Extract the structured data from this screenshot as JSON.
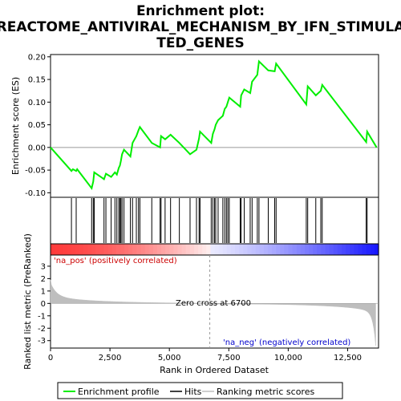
{
  "chart_data": {
    "type": "line",
    "title_line1": "Enrichment plot:",
    "title_line2": "REACTOME_ANTIVIRAL_MECHANISM_BY_IFN_STIMULA",
    "title_line3": "TED_GENES",
    "es_panel": {
      "ylabel": "Enrichment score (ES)",
      "ylim": [
        -0.11,
        0.205
      ],
      "yticks": [
        -0.1,
        -0.05,
        0.0,
        0.05,
        0.1,
        0.15,
        0.2
      ],
      "ytick_labels": [
        "-0.10",
        "-0.05",
        "0.00",
        "0.05",
        "0.10",
        "0.15",
        "0.20"
      ],
      "line_color": "#00ee00"
    },
    "xlim": [
      0,
      13800
    ],
    "xticks": [
      0,
      2500,
      5000,
      7500,
      10000,
      12500
    ],
    "xtick_labels": [
      "0",
      "2,500",
      "5,000",
      "7,500",
      "10,000",
      "12,500"
    ],
    "xlabel": "Rank in Ordered Dataset",
    "hits": [
      880,
      1080,
      1730,
      1800,
      1840,
      2250,
      2330,
      2550,
      2710,
      2790,
      2870,
      2920,
      2960,
      3010,
      3090,
      3360,
      3450,
      3610,
      3700,
      3760,
      4260,
      4610,
      4650,
      4820,
      5050,
      5420,
      5870,
      6140,
      6250,
      6290,
      6760,
      6830,
      6900,
      6950,
      7050,
      7250,
      7330,
      7400,
      7460,
      7520,
      7980,
      8020,
      8150,
      8400,
      8480,
      8700,
      8770,
      9160,
      9430,
      9490,
      10760,
      10820,
      11160,
      11370,
      11430,
      13280,
      13320
    ],
    "es_curve": [
      [
        0,
        0.0
      ],
      [
        880,
        -0.052
      ],
      [
        940,
        -0.048
      ],
      [
        1080,
        -0.052
      ],
      [
        1120,
        -0.048
      ],
      [
        1730,
        -0.09
      ],
      [
        1800,
        -0.075
      ],
      [
        1840,
        -0.055
      ],
      [
        2250,
        -0.07
      ],
      [
        2330,
        -0.058
      ],
      [
        2550,
        -0.065
      ],
      [
        2710,
        -0.055
      ],
      [
        2790,
        -0.06
      ],
      [
        2870,
        -0.045
      ],
      [
        2920,
        -0.04
      ],
      [
        2960,
        -0.03
      ],
      [
        3010,
        -0.015
      ],
      [
        3090,
        -0.005
      ],
      [
        3360,
        -0.02
      ],
      [
        3450,
        0.01
      ],
      [
        3610,
        0.025
      ],
      [
        3700,
        0.038
      ],
      [
        3760,
        0.045
      ],
      [
        4260,
        0.01
      ],
      [
        4610,
        0.0
      ],
      [
        4650,
        0.025
      ],
      [
        4820,
        0.018
      ],
      [
        5050,
        0.028
      ],
      [
        5420,
        0.01
      ],
      [
        5870,
        -0.015
      ],
      [
        6140,
        -0.005
      ],
      [
        6250,
        0.02
      ],
      [
        6290,
        0.035
      ],
      [
        6760,
        0.01
      ],
      [
        6830,
        0.03
      ],
      [
        6900,
        0.04
      ],
      [
        6950,
        0.05
      ],
      [
        7050,
        0.06
      ],
      [
        7250,
        0.07
      ],
      [
        7330,
        0.085
      ],
      [
        7400,
        0.09
      ],
      [
        7460,
        0.1
      ],
      [
        7520,
        0.11
      ],
      [
        7980,
        0.09
      ],
      [
        8020,
        0.115
      ],
      [
        8150,
        0.128
      ],
      [
        8400,
        0.12
      ],
      [
        8480,
        0.145
      ],
      [
        8700,
        0.16
      ],
      [
        8770,
        0.19
      ],
      [
        9160,
        0.17
      ],
      [
        9430,
        0.168
      ],
      [
        9490,
        0.185
      ],
      [
        10760,
        0.095
      ],
      [
        10820,
        0.135
      ],
      [
        11160,
        0.115
      ],
      [
        11370,
        0.125
      ],
      [
        11430,
        0.138
      ],
      [
        13280,
        0.012
      ],
      [
        13320,
        0.035
      ],
      [
        13720,
        0.0
      ]
    ],
    "metric_panel": {
      "ylabel": "Ranked list metric (PreRanked)",
      "ylim": [
        -3.6,
        3.9
      ],
      "yticks": [
        -3,
        -2,
        -1,
        0,
        1,
        2,
        3
      ],
      "ytick_labels": [
        "-3",
        "-2",
        "-1",
        "0",
        "1",
        "2",
        "3"
      ],
      "zero_cross_label": "Zero cross at 6700",
      "zero_cross_x": 6700,
      "pos_label": "'na_pos' (positively correlated)",
      "neg_label": "'na_neg' (negatively correlated)"
    },
    "legend": {
      "entries": [
        "Enrichment profile",
        "Hits",
        "Ranking metric scores"
      ]
    },
    "colors": {
      "enrichment": "#00ee00",
      "hits": "#000000",
      "metric": "#bebebe",
      "pos_band": "#ff0000",
      "neg_band": "#0000ff"
    }
  }
}
